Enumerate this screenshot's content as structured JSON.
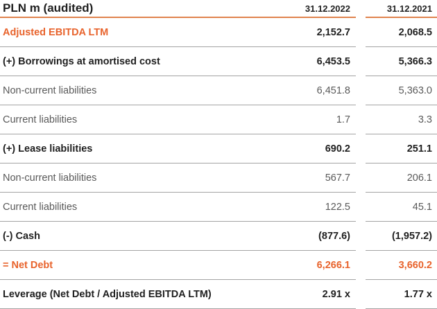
{
  "header": {
    "title": "PLN m (audited)",
    "col_2022": "31.12.2022",
    "col_2021": "31.12.2021"
  },
  "rows": [
    {
      "label": "Adjusted EBITDA LTM",
      "v2022": "2,152.7",
      "v2021": "2,068.5"
    },
    {
      "label": "(+) Borrowings at amortised cost",
      "v2022": "6,453.5",
      "v2021": "5,366.3"
    },
    {
      "label": "Non-current liabilities",
      "v2022": "6,451.8",
      "v2021": "5,363.0"
    },
    {
      "label": "Current liabilities",
      "v2022": "1.7",
      "v2021": "3.3"
    },
    {
      "label": "(+) Lease liabilities",
      "v2022": "690.2",
      "v2021": "251.1"
    },
    {
      "label": "Non-current liabilities",
      "v2022": "567.7",
      "v2021": "206.1"
    },
    {
      "label": "Current liabilities",
      "v2022": "122.5",
      "v2021": "45.1"
    },
    {
      "label": "(-) Cash",
      "v2022": "(877.6)",
      "v2021": "(1,957.2)"
    },
    {
      "label": "= Net Debt",
      "v2022": "6,266.1",
      "v2021": "3,660.2"
    },
    {
      "label": "Leverage (Net Debt / Adjusted EBITDA LTM)",
      "v2022": "2.91 x",
      "v2021": "1.77 x"
    }
  ],
  "colors": {
    "accent_orange": "#e8632c",
    "header_rule_orange": "#e0824c",
    "divider_gray": "#a3a3a3",
    "text_dark": "#1f1f1f",
    "text_gray": "#595959"
  },
  "chart_data": {
    "type": "table",
    "title": "PLN m (audited)",
    "columns": [
      "PLN m (audited)",
      "31.12.2022",
      "31.12.2021"
    ],
    "rows": [
      [
        "Adjusted EBITDA LTM",
        2152.7,
        2068.5
      ],
      [
        "(+) Borrowings at amortised cost",
        6453.5,
        5366.3
      ],
      [
        "Non-current liabilities",
        6451.8,
        5363.0
      ],
      [
        "Current liabilities",
        1.7,
        3.3
      ],
      [
        "(+) Lease liabilities",
        690.2,
        251.1
      ],
      [
        "Non-current liabilities",
        567.7,
        206.1
      ],
      [
        "Current liabilities",
        122.5,
        45.1
      ],
      [
        "(-) Cash",
        -877.6,
        -1957.2
      ],
      [
        "= Net Debt",
        6266.1,
        3660.2
      ],
      [
        "Leverage (Net Debt / Adjusted EBITDA LTM)",
        "2.91 x",
        "1.77 x"
      ]
    ]
  }
}
